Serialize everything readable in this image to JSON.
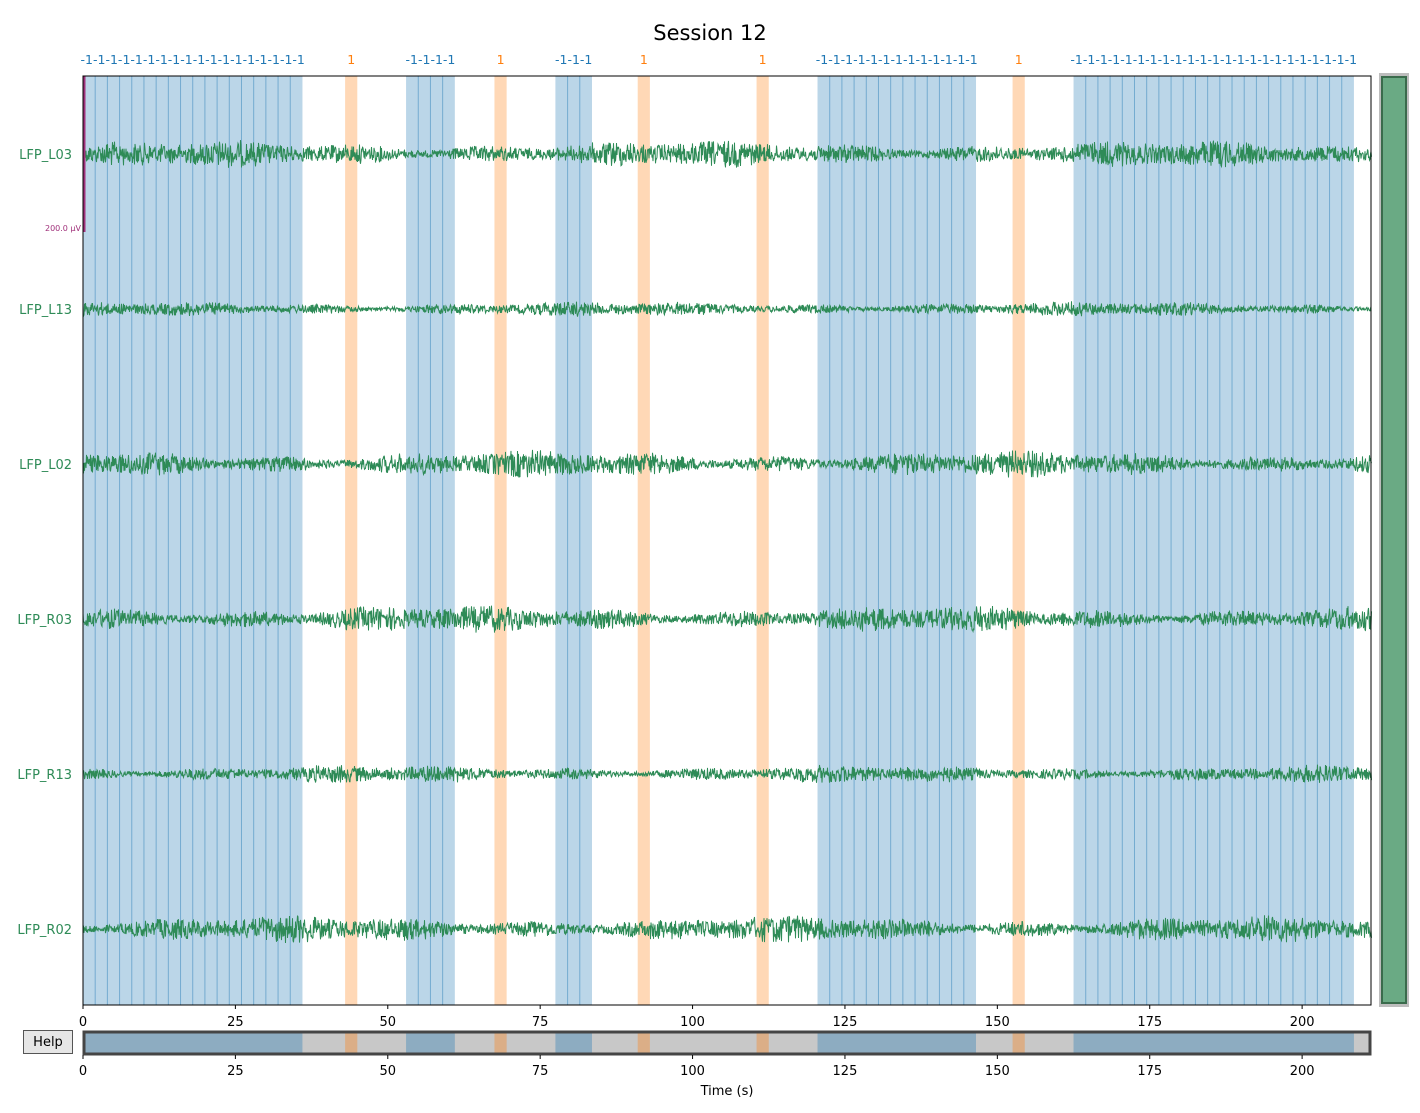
{
  "window": {
    "title": "Session 12",
    "help_label": "Help"
  },
  "browser": {
    "time_axis_label": "Time (s)",
    "scalebar_label": "200.0 µV",
    "channels": [
      "LFP_L03",
      "LFP_L13",
      "LFP_L02",
      "LFP_R03",
      "LFP_R13",
      "LFP_R02"
    ],
    "view_range_s": [
      0,
      211.3
    ],
    "ticks": [
      0,
      25,
      50,
      75,
      100,
      125,
      150,
      175,
      200
    ]
  },
  "colors": {
    "trace": "#2e8b57",
    "annotation_neg": "#1f77b4",
    "annotation_pos": "#ff7f0e",
    "scalebar": "#a0307a",
    "scrollbar_thumb": "#6aaa84"
  },
  "annotations": [
    {
      "label": "-1",
      "type": "neg",
      "blocks": [
        [
          0.0,
          36.0
        ]
      ],
      "period": 2.0
    },
    {
      "label": "1",
      "type": "pos",
      "blocks": [
        [
          43.0,
          45.0
        ]
      ]
    },
    {
      "label": "-1",
      "type": "neg",
      "blocks": [
        [
          53.0,
          61.0
        ]
      ],
      "period": 2.0
    },
    {
      "label": "1",
      "type": "pos",
      "blocks": [
        [
          67.5,
          69.5
        ]
      ]
    },
    {
      "label": "-1",
      "type": "neg",
      "blocks": [
        [
          77.5,
          83.5
        ]
      ],
      "period": 2.0
    },
    {
      "label": "1",
      "type": "pos",
      "blocks": [
        [
          91.0,
          93.0
        ]
      ]
    },
    {
      "label": "1",
      "type": "pos",
      "blocks": [
        [
          110.5,
          112.5
        ]
      ]
    },
    {
      "label": "-1",
      "type": "neg",
      "blocks": [
        [
          120.5,
          146.5
        ]
      ],
      "period": 2.0
    },
    {
      "label": "1",
      "type": "pos",
      "blocks": [
        [
          152.5,
          154.5
        ]
      ]
    },
    {
      "label": "-1",
      "type": "neg",
      "blocks": [
        [
          162.5,
          208.5
        ]
      ],
      "period": 2.0
    }
  ]
}
